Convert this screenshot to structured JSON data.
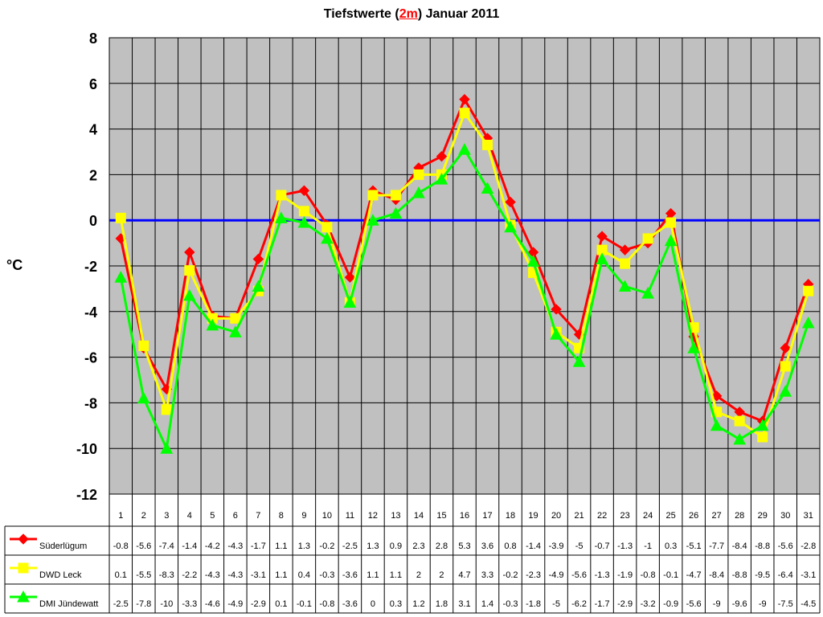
{
  "chart_data": {
    "type": "line",
    "title_prefix": "Tiefstwerte (",
    "title_em": "2m",
    "title_suffix": ") Januar 2011",
    "ylabel": "°C",
    "xlabel": "",
    "ylim": [
      -12,
      8
    ],
    "yticks": [
      8,
      6,
      4,
      2,
      0,
      -2,
      -4,
      -6,
      -8,
      -10,
      -12
    ],
    "grid": true,
    "categories": [
      "1",
      "2",
      "3",
      "4",
      "5",
      "6",
      "7",
      "8",
      "9",
      "10",
      "11",
      "12",
      "13",
      "14",
      "15",
      "16",
      "17",
      "18",
      "19",
      "20",
      "21",
      "22",
      "23",
      "24",
      "25",
      "26",
      "27",
      "28",
      "29",
      "30",
      "31"
    ],
    "series": [
      {
        "name": "Süderlügum",
        "color": "#ff0000",
        "marker": "diamond",
        "values": [
          -0.8,
          -5.6,
          -7.4,
          -1.4,
          -4.2,
          -4.3,
          -1.7,
          1.1,
          1.3,
          -0.2,
          -2.5,
          1.3,
          0.9,
          2.3,
          2.8,
          5.3,
          3.6,
          0.8,
          -1.4,
          -3.9,
          -5,
          -0.7,
          -1.3,
          -1,
          0.3,
          -5.1,
          -7.7,
          -8.4,
          -8.8,
          -5.6,
          -2.8
        ]
      },
      {
        "name": "DWD Leck",
        "color": "#ffff00",
        "marker": "square",
        "values": [
          0.1,
          -5.5,
          -8.3,
          -2.2,
          -4.3,
          -4.3,
          -3.1,
          1.1,
          0.4,
          -0.3,
          -3.6,
          1.1,
          1.1,
          2,
          2,
          4.7,
          3.3,
          -0.2,
          -2.3,
          -4.9,
          -5.6,
          -1.3,
          -1.9,
          -0.8,
          -0.1,
          -4.7,
          -8.4,
          -8.8,
          -9.5,
          -6.4,
          -3.1
        ]
      },
      {
        "name": "DMI Jündewatt",
        "color": "#00ff00",
        "marker": "triangle",
        "values": [
          -2.5,
          -7.8,
          -10,
          -3.3,
          -4.6,
          -4.9,
          -2.9,
          0.1,
          -0.1,
          -0.8,
          -3.6,
          0,
          0.3,
          1.2,
          1.8,
          3.1,
          1.4,
          -0.3,
          -1.8,
          -5,
          -6.2,
          -1.7,
          -2.9,
          -3.2,
          -0.9,
          -5.6,
          -9,
          -9.6,
          -9,
          -7.5,
          -4.5
        ]
      }
    ],
    "colors": {
      "plot_background": "#c0c0c0",
      "zero_line": "#0000ff",
      "grid": "#000000"
    }
  }
}
